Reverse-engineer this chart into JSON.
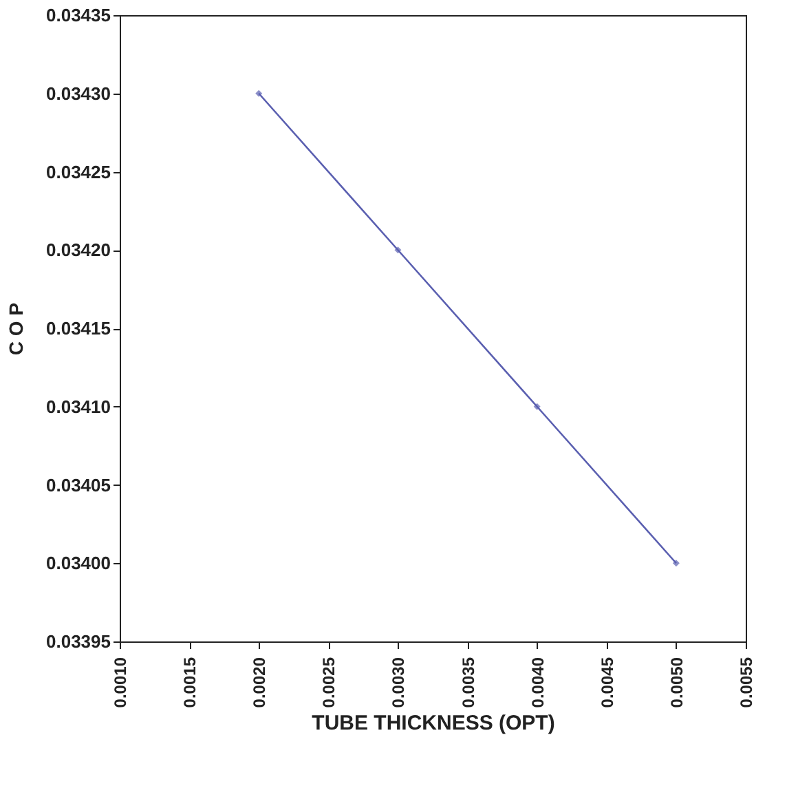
{
  "chart_data": {
    "type": "line",
    "xlabel": "TUBE THICKNESS (OPT)",
    "ylabel": "C O P",
    "x": [
      0.002,
      0.003,
      0.004,
      0.005
    ],
    "series": [
      {
        "color": "#5a5fb0",
        "values": [
          0.0343,
          0.0342,
          0.0341,
          0.034
        ]
      }
    ],
    "xlim": [
      0.001,
      0.0055
    ],
    "xticks": [
      {
        "value": 0.001,
        "label": "0.0010"
      },
      {
        "value": 0.0015,
        "label": "0.0015"
      },
      {
        "value": 0.002,
        "label": "0.0020"
      },
      {
        "value": 0.0025,
        "label": "0.0025"
      },
      {
        "value": 0.003,
        "label": "0.0030"
      },
      {
        "value": 0.0035,
        "label": "0.0035"
      },
      {
        "value": 0.004,
        "label": "0.0040"
      },
      {
        "value": 0.0045,
        "label": "0.0045"
      },
      {
        "value": 0.005,
        "label": "0.0050"
      },
      {
        "value": 0.0055,
        "label": "0.0055"
      }
    ],
    "ylim": [
      0.03395,
      0.03435
    ],
    "yticks": [
      {
        "value": 0.03395,
        "label": "0.03395"
      },
      {
        "value": 0.034,
        "label": "0.03400"
      },
      {
        "value": 0.03405,
        "label": "0.03405"
      },
      {
        "value": 0.0341,
        "label": "0.03410"
      },
      {
        "value": 0.03415,
        "label": "0.03415"
      },
      {
        "value": 0.0342,
        "label": "0.03420"
      },
      {
        "value": 0.03425,
        "label": "0.03425"
      },
      {
        "value": 0.0343,
        "label": "0.03430"
      },
      {
        "value": 0.03435,
        "label": "0.03435"
      }
    ],
    "grid": false,
    "marker": "diamond",
    "line_style": "solid"
  }
}
